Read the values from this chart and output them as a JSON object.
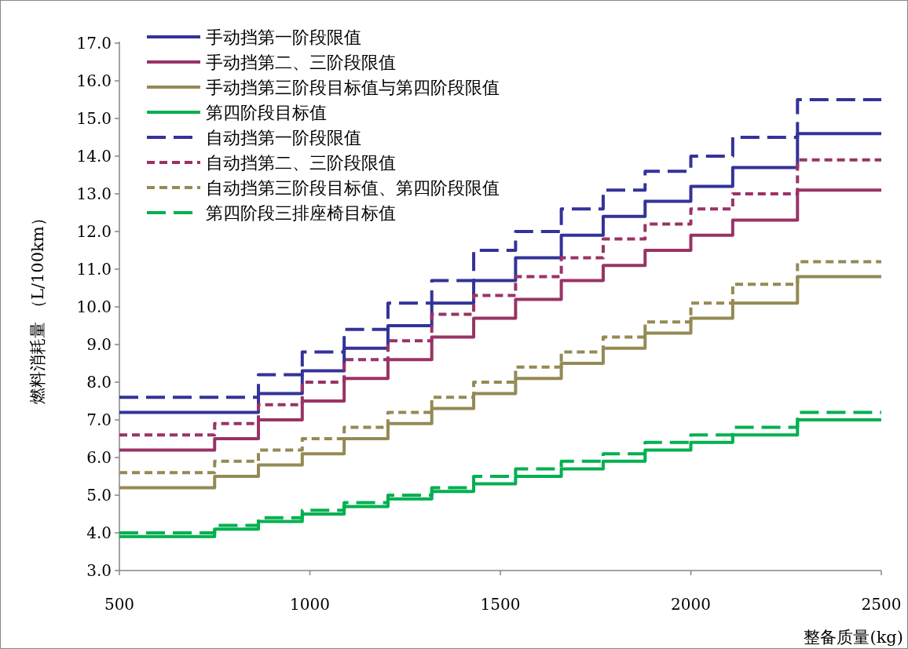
{
  "chart_data": {
    "type": "step",
    "xlabel": "整备质量(kg)",
    "ylabel": "燃料消耗量 （L/100km）",
    "x": [
      500,
      750,
      865,
      980,
      1090,
      1205,
      1320,
      1430,
      1540,
      1660,
      1770,
      1880,
      2000,
      2110,
      2280,
      2500
    ],
    "xlim": [
      500,
      2500
    ],
    "xticks": [
      500,
      1000,
      1500,
      2000,
      2500
    ],
    "ylim": [
      3,
      17
    ],
    "yticks": [
      {
        "value": 3,
        "label": "3.0"
      },
      {
        "value": 4,
        "label": "4.0"
      },
      {
        "value": 5,
        "label": "5.0"
      },
      {
        "value": 6,
        "label": "6.0"
      },
      {
        "value": 7,
        "label": "7.0"
      },
      {
        "value": 8,
        "label": "8.0"
      },
      {
        "value": 9,
        "label": "9.0"
      },
      {
        "value": 10,
        "label": "10.0"
      },
      {
        "value": 11,
        "label": "11.0"
      },
      {
        "value": 12,
        "label": "12.0"
      },
      {
        "value": 13,
        "label": "13.0"
      },
      {
        "value": 14,
        "label": "14.0"
      },
      {
        "value": 15,
        "label": "15.0"
      },
      {
        "value": 16,
        "label": "16.0"
      },
      {
        "value": 17,
        "label": "17.0"
      }
    ],
    "legend": "top left",
    "series": [
      {
        "name": "手动挡第一阶段限值",
        "color": "#333399",
        "line_style": "solid",
        "values": [
          7.2,
          7.2,
          7.7,
          8.3,
          8.9,
          9.5,
          10.1,
          10.7,
          11.3,
          11.9,
          12.4,
          12.8,
          13.2,
          13.7,
          14.6,
          14.6
        ]
      },
      {
        "name": "手动挡第二、三阶段限值",
        "color": "#993366",
        "line_style": "solid",
        "values": [
          6.2,
          6.5,
          7.0,
          7.5,
          8.1,
          8.6,
          9.2,
          9.7,
          10.2,
          10.7,
          11.1,
          11.5,
          11.9,
          12.3,
          13.1,
          13.1
        ]
      },
      {
        "name": "手动挡第三阶段目标值与第四阶段限值",
        "color": "#948a54",
        "line_style": "solid",
        "values": [
          5.2,
          5.5,
          5.8,
          6.1,
          6.5,
          6.9,
          7.3,
          7.7,
          8.1,
          8.5,
          8.9,
          9.3,
          9.7,
          10.1,
          10.8,
          10.8
        ]
      },
      {
        "name": "第四阶段目标值",
        "color": "#00b050",
        "line_style": "solid",
        "values": [
          3.9,
          4.1,
          4.3,
          4.5,
          4.7,
          4.9,
          5.1,
          5.3,
          5.5,
          5.7,
          5.9,
          6.2,
          6.4,
          6.6,
          7.0,
          7.0
        ]
      },
      {
        "name": "自动挡第一阶段限值",
        "color": "#333399",
        "line_style": "dashed",
        "values": [
          7.6,
          7.6,
          8.2,
          8.8,
          9.4,
          10.1,
          10.7,
          11.5,
          12.0,
          12.6,
          13.1,
          13.6,
          14.0,
          14.5,
          15.5,
          15.5
        ]
      },
      {
        "name": "自动挡第二、三阶段限值",
        "color": "#993366",
        "line_style": "dotted",
        "values": [
          6.6,
          6.9,
          7.4,
          8.0,
          8.6,
          9.1,
          9.8,
          10.3,
          10.8,
          11.3,
          11.8,
          12.2,
          12.6,
          13.0,
          13.9,
          13.9
        ]
      },
      {
        "name": "自动挡第三阶段目标值、第四阶段限值",
        "color": "#948a54",
        "line_style": "dotted",
        "values": [
          5.6,
          5.9,
          6.2,
          6.5,
          6.8,
          7.2,
          7.6,
          8.0,
          8.4,
          8.8,
          9.2,
          9.6,
          10.1,
          10.6,
          11.2,
          11.2
        ]
      },
      {
        "name": "第四阶段三排座椅目标值",
        "color": "#00b050",
        "line_style": "dashed",
        "values": [
          4.0,
          4.2,
          4.4,
          4.6,
          4.8,
          5.0,
          5.2,
          5.5,
          5.7,
          5.9,
          6.1,
          6.4,
          6.6,
          6.8,
          7.2,
          7.2
        ]
      }
    ]
  }
}
